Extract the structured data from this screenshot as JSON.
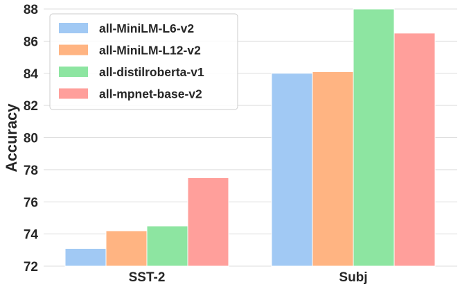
{
  "chart_data": {
    "type": "bar",
    "categories": [
      "SST-2",
      "Subj"
    ],
    "series": [
      {
        "name": "all-MiniLM-L6-v2",
        "color": "#a1c9f4",
        "values": [
          73.1,
          84.0
        ]
      },
      {
        "name": "all-MiniLM-L12-v2",
        "color": "#ffb482",
        "values": [
          74.2,
          84.1
        ]
      },
      {
        "name": "all-distilroberta-v1",
        "color": "#8de5a1",
        "values": [
          74.5,
          88.0
        ]
      },
      {
        "name": "all-mpnet-base-v2",
        "color": "#ff9f9b",
        "values": [
          77.5,
          86.5
        ]
      }
    ],
    "ylabel": "Accuracy",
    "xlabel": "",
    "ylim": [
      72,
      88
    ],
    "yticks": [
      72,
      74,
      76,
      78,
      80,
      82,
      84,
      86,
      88
    ],
    "grid": "horizontal",
    "legend_position": "top-left"
  }
}
